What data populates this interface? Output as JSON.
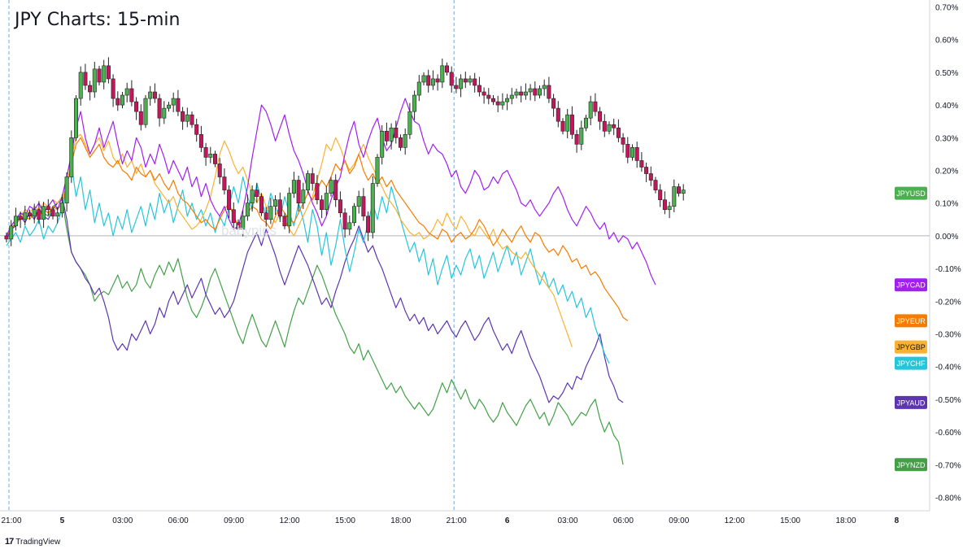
{
  "title": "JPY Charts: 15-min",
  "watermark": "babypips",
  "brand": {
    "logo": "17",
    "name": "TradingView"
  },
  "colors": {
    "JPYUSD_up": "#4caf50",
    "JPYUSD_down": "#c2185b",
    "JPYCAD": "#a020f0",
    "JPYEUR": "#f57c00",
    "JPYGBP": "#f9b233",
    "JPYCHF": "#26c6da",
    "JPYAUD": "#5e35b1",
    "JPYNZD": "#43a047"
  },
  "chart_data": {
    "type": "line",
    "title": "JPY Charts: 15-min",
    "ylim": [
      -0.8,
      0.7
    ],
    "y_ticks": [
      "0.70%",
      "0.60%",
      "0.50%",
      "0.40%",
      "0.30%",
      "0.20%",
      "0.10%",
      "0.00%",
      "-0.10%",
      "-0.20%",
      "-0.30%",
      "-0.40%",
      "-0.50%",
      "-0.60%",
      "-0.70%",
      "-0.80%"
    ],
    "x_ticks": [
      "21:00",
      "5",
      "03:00",
      "06:00",
      "09:00",
      "12:00",
      "15:00",
      "18:00",
      "21:00",
      "6",
      "03:00",
      "06:00",
      "09:00",
      "12:00",
      "15:00",
      "18:00",
      "8"
    ],
    "x_tick_index": [
      0,
      12,
      24,
      36,
      48,
      60,
      72,
      84,
      96,
      108,
      120,
      132,
      144,
      156,
      168,
      180,
      192
    ],
    "session_markers": [
      0,
      96
    ],
    "series": [
      {
        "name": "JPYUSD",
        "type": "candlestick",
        "last": 0.13,
        "closes": [
          -0.01,
          0.03,
          0.06,
          0.05,
          0.07,
          0.06,
          0.08,
          0.05,
          0.09,
          0.08,
          0.06,
          0.07,
          0.1,
          0.18,
          0.3,
          0.42,
          0.5,
          0.46,
          0.44,
          0.51,
          0.47,
          0.52,
          0.48,
          0.42,
          0.4,
          0.43,
          0.45,
          0.41,
          0.38,
          0.34,
          0.42,
          0.44,
          0.42,
          0.36,
          0.39,
          0.4,
          0.42,
          0.38,
          0.35,
          0.37,
          0.34,
          0.31,
          0.27,
          0.24,
          0.25,
          0.22,
          0.18,
          0.14,
          0.08,
          0.04,
          0.02,
          0.06,
          0.1,
          0.14,
          0.12,
          0.07,
          0.05,
          0.09,
          0.11,
          0.06,
          0.03,
          0.13,
          0.17,
          0.1,
          0.14,
          0.19,
          0.16,
          0.11,
          0.08,
          0.13,
          0.17,
          0.11,
          0.07,
          0.02,
          0.04,
          0.09,
          0.12,
          0.06,
          0.01,
          0.16,
          0.24,
          0.32,
          0.29,
          0.33,
          0.3,
          0.27,
          0.31,
          0.38,
          0.43,
          0.47,
          0.49,
          0.46,
          0.48,
          0.47,
          0.52,
          0.5,
          0.46,
          0.45,
          0.48,
          0.47,
          0.48,
          0.46,
          0.44,
          0.43,
          0.42,
          0.41,
          0.4,
          0.41,
          0.42,
          0.43,
          0.44,
          0.43,
          0.44,
          0.45,
          0.43,
          0.45,
          0.46,
          0.42,
          0.39,
          0.35,
          0.32,
          0.37,
          0.31,
          0.28,
          0.33,
          0.36,
          0.41,
          0.38,
          0.35,
          0.32,
          0.34,
          0.33,
          0.3,
          0.28,
          0.24,
          0.27,
          0.23,
          0.21,
          0.19,
          0.17,
          0.14,
          0.11,
          0.08,
          0.09,
          0.15,
          0.13,
          0.14
        ]
      },
      {
        "name": "JPYCAD",
        "last": -0.15,
        "values": [
          0.0,
          0.03,
          0.05,
          0.07,
          0.06,
          0.09,
          0.08,
          0.1,
          0.07,
          0.09,
          0.11,
          0.08,
          0.12,
          0.18,
          0.25,
          0.33,
          0.38,
          0.3,
          0.25,
          0.28,
          0.33,
          0.27,
          0.31,
          0.35,
          0.28,
          0.22,
          0.26,
          0.23,
          0.3,
          0.27,
          0.21,
          0.25,
          0.22,
          0.28,
          0.24,
          0.19,
          0.23,
          0.2,
          0.17,
          0.21,
          0.15,
          0.18,
          0.12,
          0.16,
          0.11,
          0.08,
          0.06,
          0.09,
          0.05,
          0.02,
          0.03,
          0.08,
          0.15,
          0.24,
          0.32,
          0.4,
          0.38,
          0.34,
          0.29,
          0.33,
          0.37,
          0.31,
          0.26,
          0.23,
          0.19,
          0.14,
          0.1,
          0.07,
          0.03,
          0.06,
          0.11,
          0.15,
          0.18,
          0.25,
          0.31,
          0.35,
          0.28,
          0.24,
          0.29,
          0.33,
          0.36,
          0.3,
          0.26,
          0.28,
          0.33,
          0.38,
          0.42,
          0.38,
          0.35,
          0.34,
          0.29,
          0.25,
          0.28,
          0.26,
          0.25,
          0.22,
          0.18,
          0.2,
          0.15,
          0.13,
          0.16,
          0.2,
          0.18,
          0.14,
          0.15,
          0.18,
          0.16,
          0.19,
          0.2,
          0.17,
          0.14,
          0.1,
          0.09,
          0.11,
          0.08,
          0.06,
          0.08,
          0.1,
          0.13,
          0.15,
          0.12,
          0.08,
          0.05,
          0.03,
          0.06,
          0.09,
          0.07,
          0.04,
          0.02,
          0.04,
          -0.01,
          0.01,
          -0.02,
          0.0,
          -0.01,
          -0.04,
          -0.02,
          -0.05,
          -0.08,
          -0.12,
          -0.15
        ]
      },
      {
        "name": "JPYEUR",
        "last": -0.26,
        "values": [
          0.0,
          0.02,
          0.04,
          0.05,
          0.06,
          0.05,
          0.07,
          0.06,
          0.08,
          0.07,
          0.09,
          0.08,
          0.1,
          0.16,
          0.22,
          0.28,
          0.3,
          0.27,
          0.24,
          0.26,
          0.28,
          0.24,
          0.22,
          0.21,
          0.23,
          0.2,
          0.19,
          0.17,
          0.21,
          0.19,
          0.18,
          0.2,
          0.17,
          0.19,
          0.16,
          0.14,
          0.17,
          0.13,
          0.11,
          0.1,
          0.08,
          0.06,
          0.04,
          0.05,
          0.03,
          0.02,
          0.05,
          0.08,
          0.1,
          0.06,
          0.03,
          0.05,
          0.07,
          0.09,
          0.08,
          0.05,
          0.04,
          0.02,
          0.06,
          0.09,
          0.07,
          0.05,
          0.04,
          0.07,
          0.1,
          0.13,
          0.11,
          0.14,
          0.17,
          0.15,
          0.18,
          0.22,
          0.2,
          0.23,
          0.19,
          0.21,
          0.25,
          0.2,
          0.17,
          0.19,
          0.16,
          0.18,
          0.15,
          0.17,
          0.14,
          0.12,
          0.1,
          0.08,
          0.06,
          0.04,
          0.03,
          0.01,
          0.0,
          -0.01,
          0.02,
          0.01,
          -0.02,
          0.0,
          0.01,
          -0.01,
          0.0,
          0.02,
          0.05,
          0.03,
          0.0,
          -0.03,
          -0.01,
          0.02,
          0.0,
          -0.02,
          0.01,
          0.03,
          0.0,
          -0.02,
          0.01,
          0.0,
          -0.03,
          -0.05,
          -0.04,
          -0.06,
          -0.03,
          -0.05,
          -0.08,
          -0.07,
          -0.1,
          -0.09,
          -0.12,
          -0.11,
          -0.13,
          -0.16,
          -0.18,
          -0.2,
          -0.22,
          -0.25,
          -0.26
        ]
      },
      {
        "name": "JPYGBP",
        "last": -0.34,
        "values": [
          0.0,
          0.03,
          0.05,
          0.06,
          0.08,
          0.07,
          0.09,
          0.08,
          0.1,
          0.09,
          0.11,
          0.1,
          0.12,
          0.18,
          0.24,
          0.3,
          0.31,
          0.28,
          0.25,
          0.28,
          0.3,
          0.26,
          0.29,
          0.24,
          0.22,
          0.25,
          0.21,
          0.23,
          0.19,
          0.22,
          0.18,
          0.2,
          0.16,
          0.14,
          0.12,
          0.1,
          0.12,
          0.08,
          0.06,
          0.04,
          0.02,
          0.03,
          0.05,
          0.08,
          0.12,
          0.18,
          0.25,
          0.29,
          0.26,
          0.22,
          0.19,
          0.21,
          0.17,
          0.13,
          0.1,
          0.13,
          0.09,
          0.06,
          0.04,
          0.07,
          0.05,
          0.02,
          0.0,
          0.03,
          0.06,
          0.09,
          0.12,
          0.17,
          0.22,
          0.28,
          0.26,
          0.3,
          0.27,
          0.23,
          0.2,
          0.22,
          0.25,
          0.28,
          0.24,
          0.21,
          0.18,
          0.15,
          0.12,
          0.1,
          0.08,
          0.05,
          0.03,
          0.01,
          0.0,
          0.01,
          -0.01,
          0.0,
          0.02,
          0.05,
          0.03,
          0.07,
          0.04,
          0.02,
          0.06,
          0.04,
          0.01,
          0.0,
          0.03,
          0.01,
          -0.01,
          0.02,
          -0.02,
          -0.04,
          -0.03,
          -0.05,
          -0.06,
          -0.07,
          -0.05,
          -0.08,
          -0.1,
          -0.12,
          -0.14,
          -0.16,
          -0.18,
          -0.22,
          -0.26,
          -0.3,
          -0.34
        ]
      },
      {
        "name": "JPYCHF",
        "last": -0.39,
        "values": [
          -0.03,
          -0.01,
          0.01,
          -0.02,
          0.03,
          0.0,
          0.02,
          0.05,
          -0.01,
          0.03,
          0.01,
          0.04,
          0.08,
          0.15,
          0.22,
          0.12,
          0.18,
          0.08,
          0.14,
          0.04,
          0.1,
          0.03,
          0.07,
          0.0,
          0.06,
          0.02,
          0.08,
          0.01,
          0.05,
          0.09,
          0.03,
          0.1,
          0.05,
          0.13,
          0.07,
          0.11,
          0.04,
          0.09,
          0.14,
          0.06,
          0.1,
          0.05,
          0.08,
          0.03,
          0.07,
          0.01,
          0.06,
          0.03,
          0.09,
          0.15,
          0.1,
          0.18,
          0.12,
          0.08,
          0.16,
          0.11,
          0.06,
          0.13,
          0.09,
          0.05,
          0.12,
          0.07,
          0.03,
          0.1,
          0.05,
          -0.02,
          0.08,
          0.03,
          -0.06,
          0.01,
          -0.09,
          -0.03,
          0.05,
          -0.04,
          -0.11,
          -0.05,
          0.02,
          -0.02,
          0.04,
          0.1,
          0.05,
          0.12,
          0.07,
          0.15,
          0.1,
          0.05,
          0.0,
          -0.05,
          -0.02,
          -0.08,
          -0.04,
          -0.12,
          -0.07,
          -0.15,
          -0.1,
          -0.06,
          -0.13,
          -0.09,
          -0.12,
          -0.07,
          -0.04,
          -0.1,
          -0.06,
          -0.13,
          -0.09,
          -0.05,
          -0.11,
          -0.07,
          -0.03,
          -0.09,
          -0.05,
          -0.12,
          -0.08,
          -0.04,
          -0.1,
          -0.15,
          -0.11,
          -0.16,
          -0.13,
          -0.18,
          -0.15,
          -0.2,
          -0.17,
          -0.22,
          -0.19,
          -0.25,
          -0.22,
          -0.28,
          -0.32,
          -0.36,
          -0.39
        ]
      },
      {
        "name": "JPYAUD",
        "last": -0.51,
        "values": [
          -0.01,
          0.02,
          0.03,
          0.06,
          0.04,
          0.07,
          0.05,
          0.08,
          0.06,
          0.05,
          0.08,
          0.1,
          0.12,
          0.05,
          -0.05,
          -0.08,
          -0.1,
          -0.13,
          -0.15,
          -0.18,
          -0.16,
          -0.2,
          -0.25,
          -0.32,
          -0.35,
          -0.33,
          -0.35,
          -0.3,
          -0.32,
          -0.29,
          -0.26,
          -0.3,
          -0.27,
          -0.22,
          -0.25,
          -0.2,
          -0.17,
          -0.21,
          -0.18,
          -0.15,
          -0.19,
          -0.16,
          -0.13,
          -0.18,
          -0.21,
          -0.24,
          -0.22,
          -0.25,
          -0.23,
          -0.2,
          -0.15,
          -0.1,
          -0.05,
          -0.02,
          0.01,
          -0.03,
          0.02,
          -0.02,
          -0.06,
          -0.11,
          -0.15,
          -0.11,
          -0.07,
          -0.03,
          -0.06,
          -0.09,
          -0.13,
          -0.17,
          -0.21,
          -0.19,
          -0.22,
          -0.17,
          -0.13,
          -0.08,
          -0.04,
          -0.01,
          0.03,
          -0.01,
          -0.05,
          -0.03,
          -0.07,
          -0.1,
          -0.14,
          -0.18,
          -0.22,
          -0.19,
          -0.23,
          -0.26,
          -0.24,
          -0.27,
          -0.25,
          -0.29,
          -0.27,
          -0.3,
          -0.28,
          -0.26,
          -0.29,
          -0.31,
          -0.28,
          -0.26,
          -0.29,
          -0.32,
          -0.3,
          -0.27,
          -0.25,
          -0.29,
          -0.32,
          -0.35,
          -0.33,
          -0.36,
          -0.32,
          -0.29,
          -0.33,
          -0.37,
          -0.4,
          -0.43,
          -0.47,
          -0.51,
          -0.49,
          -0.5,
          -0.48,
          -0.45,
          -0.47,
          -0.43,
          -0.44,
          -0.4,
          -0.37,
          -0.34,
          -0.3,
          -0.37,
          -0.43,
          -0.46,
          -0.5,
          -0.51
        ]
      },
      {
        "name": "JPYNZD",
        "last": -0.7,
        "values": [
          0.0,
          0.02,
          0.04,
          0.06,
          0.05,
          0.07,
          0.06,
          0.08,
          0.07,
          0.06,
          0.09,
          0.1,
          0.11,
          0.02,
          -0.05,
          -0.08,
          -0.1,
          -0.12,
          -0.15,
          -0.2,
          -0.18,
          -0.17,
          -0.18,
          -0.15,
          -0.12,
          -0.16,
          -0.14,
          -0.17,
          -0.15,
          -0.1,
          -0.14,
          -0.16,
          -0.12,
          -0.09,
          -0.12,
          -0.08,
          -0.11,
          -0.07,
          -0.13,
          -0.19,
          -0.23,
          -0.25,
          -0.22,
          -0.18,
          -0.13,
          -0.1,
          -0.14,
          -0.18,
          -0.22,
          -0.26,
          -0.3,
          -0.33,
          -0.28,
          -0.24,
          -0.28,
          -0.32,
          -0.34,
          -0.3,
          -0.26,
          -0.3,
          -0.34,
          -0.28,
          -0.23,
          -0.19,
          -0.21,
          -0.17,
          -0.13,
          -0.09,
          -0.12,
          -0.16,
          -0.2,
          -0.24,
          -0.27,
          -0.3,
          -0.34,
          -0.36,
          -0.33,
          -0.38,
          -0.35,
          -0.38,
          -0.41,
          -0.44,
          -0.47,
          -0.45,
          -0.48,
          -0.46,
          -0.49,
          -0.51,
          -0.53,
          -0.51,
          -0.53,
          -0.55,
          -0.53,
          -0.49,
          -0.45,
          -0.48,
          -0.44,
          -0.47,
          -0.5,
          -0.47,
          -0.51,
          -0.53,
          -0.5,
          -0.52,
          -0.55,
          -0.57,
          -0.55,
          -0.51,
          -0.54,
          -0.56,
          -0.58,
          -0.55,
          -0.52,
          -0.5,
          -0.53,
          -0.56,
          -0.54,
          -0.58,
          -0.55,
          -0.51,
          -0.53,
          -0.55,
          -0.58,
          -0.56,
          -0.54,
          -0.55,
          -0.52,
          -0.5,
          -0.56,
          -0.6,
          -0.57,
          -0.61,
          -0.63,
          -0.7
        ]
      }
    ]
  }
}
